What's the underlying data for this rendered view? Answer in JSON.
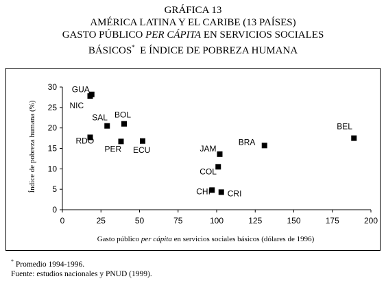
{
  "header": {
    "line1": "GRÁFICA 13",
    "line2": "AMÉRICA LATINA Y EL CARIBE (13 PAÍSES)",
    "line3_part1": "GASTO PÚBLICO ",
    "line3_italic": "PER CÁPITA",
    "line3_part2": " EN SERVICIOS SOCIALES",
    "line4_part1": "BÁSICOS",
    "line4_sup": "*",
    "line4_part2": "  E ÍNDICE DE POBREZA HUMANA"
  },
  "chart_data": {
    "type": "scatter",
    "xlabel_part1": "Gasto público ",
    "xlabel_italic": "per cápita",
    "xlabel_part2": " en servicios sociales básicos (dólares de 1996)",
    "ylabel": "Índice de pobreza humana (%)",
    "xlim": [
      0,
      200
    ],
    "ylim": [
      0,
      30
    ],
    "xticks": [
      0,
      25,
      50,
      75,
      100,
      125,
      150,
      175,
      200
    ],
    "yticks": [
      0,
      5,
      10,
      15,
      20,
      25,
      30
    ],
    "grid": false,
    "marker_color": "#000000",
    "points": [
      {
        "label": "GUA",
        "x": 19,
        "y": 28.2
      },
      {
        "label": "NIC",
        "x": 18,
        "y": 27.8
      },
      {
        "label": "SAL",
        "x": 29,
        "y": 20.5
      },
      {
        "label": "BOL",
        "x": 40,
        "y": 21.0
      },
      {
        "label": "RDO",
        "x": 18,
        "y": 17.7
      },
      {
        "label": "PER",
        "x": 38,
        "y": 16.7
      },
      {
        "label": "ECU",
        "x": 52,
        "y": 16.8
      },
      {
        "label": "JAM",
        "x": 102,
        "y": 13.6
      },
      {
        "label": "BRA",
        "x": 131,
        "y": 15.7
      },
      {
        "label": "BEL",
        "x": 189,
        "y": 17.5
      },
      {
        "label": "COL",
        "x": 101,
        "y": 10.5
      },
      {
        "label": "CHI",
        "x": 97,
        "y": 4.8
      },
      {
        "label": "CRI",
        "x": 103,
        "y": 4.3
      }
    ]
  },
  "notes": {
    "footnote_sup": "*",
    "footnote_text": " Promedio 1994-1996.",
    "source": "Fuente: estudios nacionales y PNUD (1999)."
  }
}
